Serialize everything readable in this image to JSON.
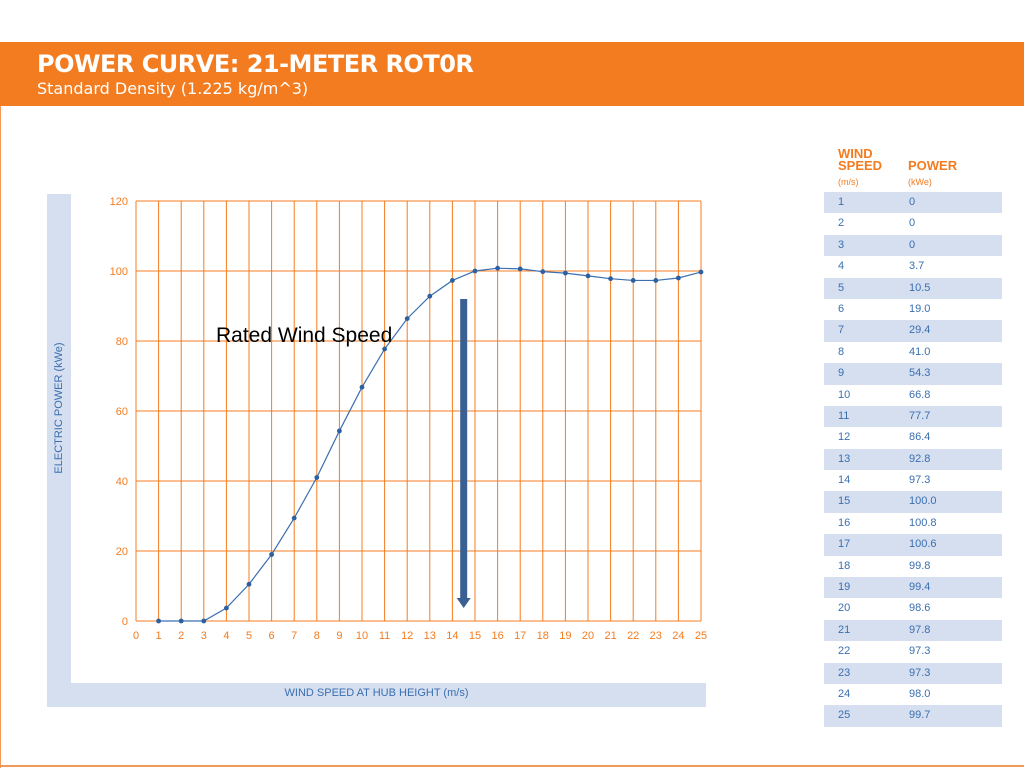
{
  "header": {
    "title": "POWER CURVE: 21-METER ROT0R",
    "subtitle": "Standard Density (1.225 kg/m^3)"
  },
  "annotation": "Rated Wind Speed",
  "table": {
    "col1_header": [
      "WIND",
      "SPEED"
    ],
    "col1_unit": "(m/s)",
    "col2_header": "POWER",
    "col2_unit": "(kWe)",
    "rows": [
      [
        "1",
        "0"
      ],
      [
        "2",
        "0"
      ],
      [
        "3",
        "0"
      ],
      [
        "4",
        "3.7"
      ],
      [
        "5",
        "10.5"
      ],
      [
        "6",
        "19.0"
      ],
      [
        "7",
        "29.4"
      ],
      [
        "8",
        "41.0"
      ],
      [
        "9",
        "54.3"
      ],
      [
        "10",
        "66.8"
      ],
      [
        "11",
        "77.7"
      ],
      [
        "12",
        "86.4"
      ],
      [
        "13",
        "92.8"
      ],
      [
        "14",
        "97.3"
      ],
      [
        "15",
        "100.0"
      ],
      [
        "16",
        "100.8"
      ],
      [
        "17",
        "100.6"
      ],
      [
        "18",
        "99.8"
      ],
      [
        "19",
        "99.4"
      ],
      [
        "20",
        "98.6"
      ],
      [
        "21",
        "97.8"
      ],
      [
        "22",
        "97.3"
      ],
      [
        "23",
        "97.3"
      ],
      [
        "24",
        "98.0"
      ],
      [
        "25",
        "99.7"
      ]
    ]
  },
  "chart_data": {
    "type": "line",
    "xlabel": "WIND SPEED AT HUB HEIGHT (m/s)",
    "ylabel": "ELECTRIC POWER (kWe)",
    "xlim": [
      0,
      25
    ],
    "ylim": [
      0,
      120
    ],
    "x_ticks": [
      0,
      1,
      2,
      3,
      4,
      5,
      6,
      7,
      8,
      9,
      10,
      11,
      12,
      13,
      14,
      15,
      16,
      17,
      18,
      19,
      20,
      21,
      22,
      23,
      24,
      25
    ],
    "y_ticks": [
      0,
      20,
      40,
      60,
      80,
      100,
      120
    ],
    "grid": true,
    "x": [
      1,
      2,
      3,
      4,
      5,
      6,
      7,
      8,
      9,
      10,
      11,
      12,
      13,
      14,
      15,
      16,
      17,
      18,
      19,
      20,
      21,
      22,
      23,
      24,
      25
    ],
    "y": [
      0,
      0,
      0,
      3.7,
      10.5,
      19.0,
      29.4,
      41.0,
      54.3,
      66.8,
      77.7,
      86.4,
      92.8,
      97.3,
      100.0,
      100.8,
      100.6,
      99.8,
      99.4,
      98.6,
      97.8,
      97.3,
      97.3,
      98.0,
      99.7
    ],
    "annotation_arrow": {
      "x": 14.5,
      "y_from": 92,
      "y_to": 4
    },
    "colors": {
      "grid": "#f47c20",
      "line": "#3a6fb0",
      "tick_label": "#f47c20",
      "arrow": "#3a5f93"
    }
  }
}
